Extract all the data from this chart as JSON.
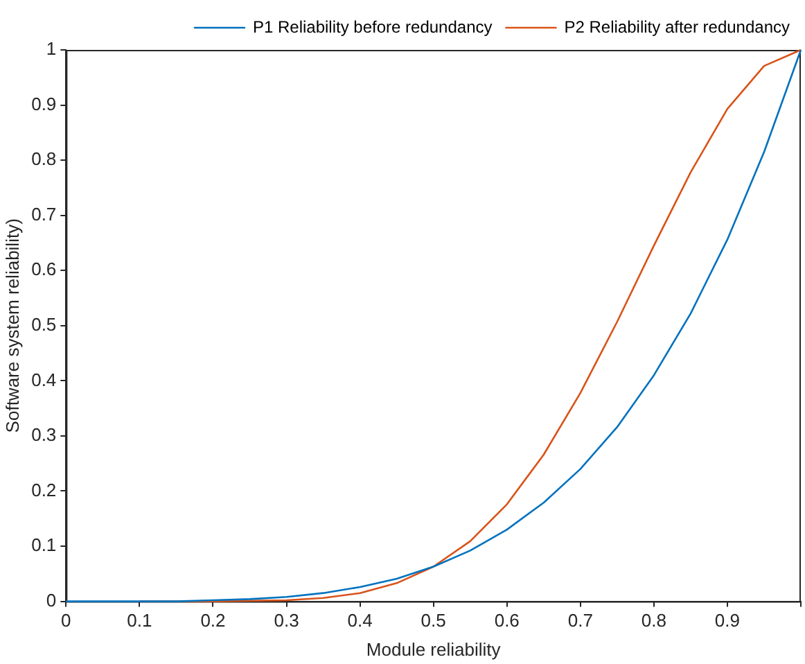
{
  "chart_data": {
    "type": "line",
    "xlabel": "Module reliability",
    "ylabel": "Software system reliability)",
    "x": [
      0,
      0.05,
      0.1,
      0.15,
      0.2,
      0.25,
      0.3,
      0.35,
      0.4,
      0.45,
      0.5,
      0.55,
      0.6,
      0.65,
      0.7,
      0.75,
      0.8,
      0.85,
      0.9,
      0.95,
      1
    ],
    "series": [
      {
        "name": "P1 Reliability before redundancy",
        "color": "#0072bd",
        "values": [
          0,
          0,
          0,
          0,
          0.002,
          0.004,
          0.008,
          0.015,
          0.026,
          0.041,
          0.063,
          0.092,
          0.13,
          0.179,
          0.24,
          0.316,
          0.41,
          0.522,
          0.656,
          0.815,
          1
        ]
      },
      {
        "name": "P2 Reliability after redundancy",
        "color": "#d95319",
        "values": [
          null,
          null,
          0,
          0,
          0,
          0.001,
          0.002,
          0.006,
          0.015,
          0.033,
          0.063,
          0.109,
          0.176,
          0.266,
          0.378,
          0.507,
          0.645,
          0.778,
          0.893,
          0.971,
          1
        ]
      }
    ],
    "xlim": [
      0,
      1
    ],
    "xticks": [
      0,
      0.1,
      0.2,
      0.3,
      0.4,
      0.5,
      0.6,
      0.7,
      0.8,
      0.9,
      {
        "value": 1,
        "label": null
      }
    ],
    "ylim": [
      0,
      1
    ],
    "yticks": [
      0,
      0.1,
      0.2,
      0.3,
      0.4,
      0.5,
      0.6,
      0.7,
      0.8,
      0.9,
      1
    ],
    "grid": false,
    "legend": "top right",
    "marker": "none",
    "line_style": "solid"
  }
}
